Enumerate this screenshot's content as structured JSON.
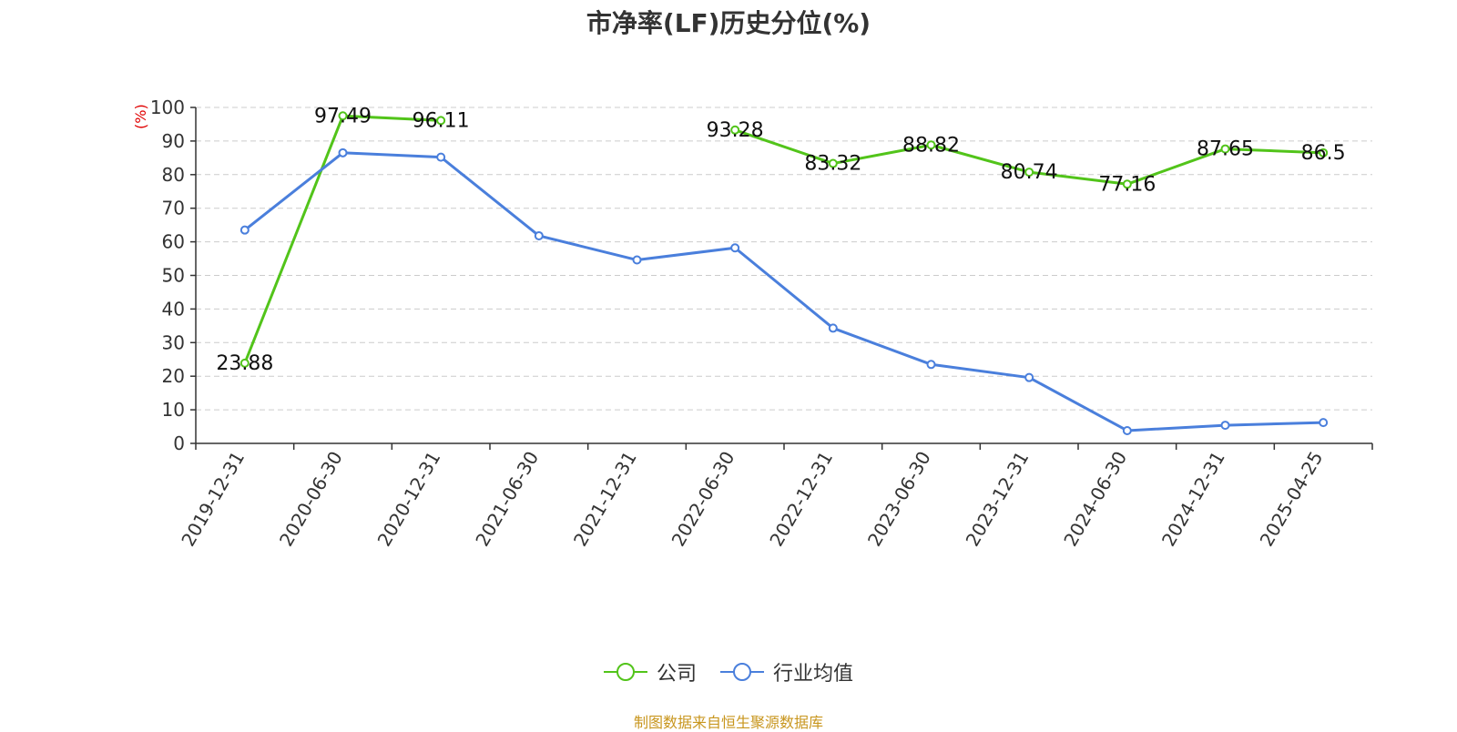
{
  "chart_data": {
    "type": "line",
    "title": "市净率(LF)历史分位(%)",
    "unit_label": "(%)",
    "categories": [
      "2019-12-31",
      "2020-06-30",
      "2020-12-31",
      "2021-06-30",
      "2021-12-31",
      "2022-06-30",
      "2022-12-31",
      "2023-06-30",
      "2023-12-31",
      "2024-06-30",
      "2024-12-31",
      "2025-04-25"
    ],
    "ylim": [
      0,
      100
    ],
    "yticks": [
      0,
      10,
      20,
      30,
      40,
      50,
      60,
      70,
      80,
      90,
      100
    ],
    "grid": true,
    "legend_position": "bottom-center",
    "series": [
      {
        "name": "公司",
        "color": "#52c41a",
        "show_labels": true,
        "values": [
          23.88,
          97.49,
          96.11,
          null,
          null,
          93.28,
          83.32,
          88.82,
          80.74,
          77.16,
          87.65,
          86.5
        ]
      },
      {
        "name": "行业均值",
        "color": "#4a7fdc",
        "show_labels": false,
        "values": [
          63.5,
          86.5,
          85.2,
          61.8,
          54.6,
          58.2,
          34.3,
          23.5,
          19.6,
          3.8,
          5.4,
          6.2
        ]
      }
    ]
  },
  "source_note": "制图数据来自恒生聚源数据库"
}
